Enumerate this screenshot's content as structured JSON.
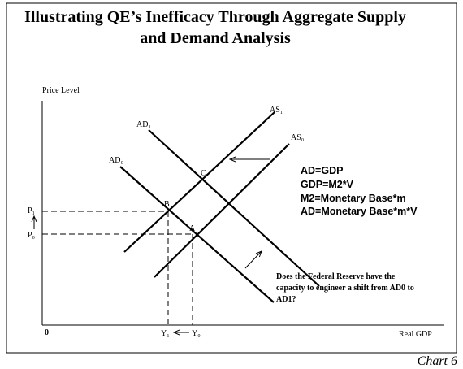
{
  "title": [
    "Illustrating QE’s Inefficacy Through Aggregate Supply",
    "and Demand Analysis"
  ],
  "axes": {
    "y_label": "Price Level",
    "x_label": "Real GDP",
    "origin": "0"
  },
  "curves": {
    "as1": "AS₁",
    "as0": "AS₀",
    "ad1": "AD₁",
    "ad0": "AD₀"
  },
  "points": {
    "a": "A",
    "b": "B",
    "c": "C"
  },
  "price_labels": [
    "P₁",
    "P₀"
  ],
  "output_labels": [
    "Y₁",
    "Y₀"
  ],
  "equations": [
    "AD=GDP",
    "GDP=M2*V",
    "M2=Monetary Base*m",
    "AD=Monetary Base*m*V"
  ],
  "question": [
    "Does the Federal Reserve have the",
    "capacity to engineer a shift from AD0 to",
    "AD1?"
  ],
  "caption": "Chart 6"
}
